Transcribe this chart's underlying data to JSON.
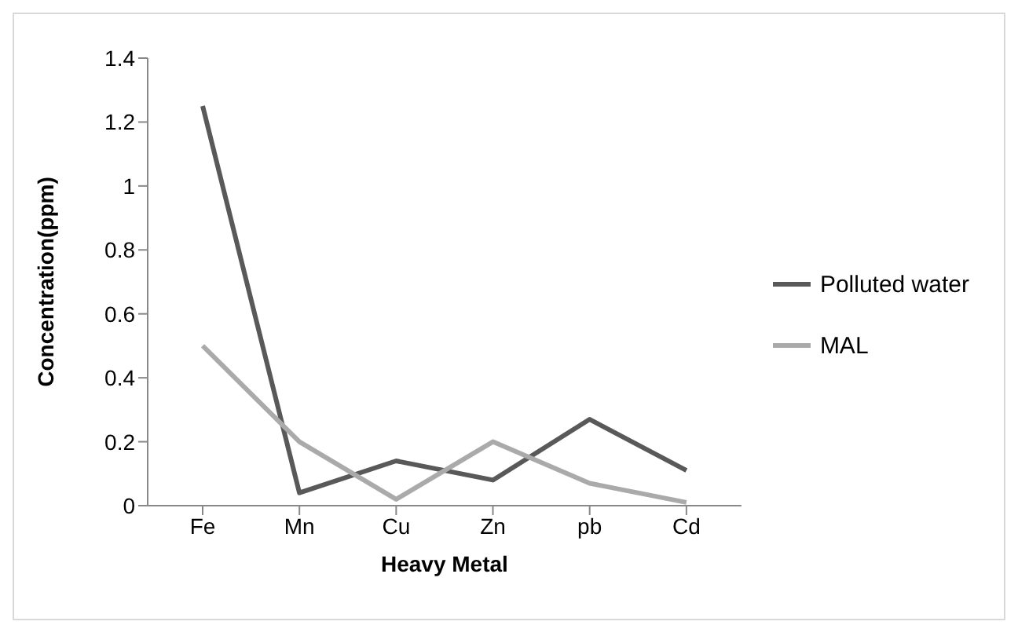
{
  "chart_data": {
    "type": "line",
    "xlabel": "Heavy Metal",
    "ylabel": "Concentration(ppm)",
    "categories": [
      "Fe",
      "Mn",
      "Cu",
      "Zn",
      "pb",
      "Cd"
    ],
    "series": [
      {
        "name": "Polluted water",
        "color": "#595959",
        "values": [
          1.25,
          0.04,
          0.14,
          0.08,
          0.27,
          0.11
        ]
      },
      {
        "name": "MAL",
        "color": "#aaaaaa",
        "values": [
          0.5,
          0.2,
          0.02,
          0.2,
          0.07,
          0.01
        ]
      }
    ],
    "ylim": [
      0,
      1.4
    ],
    "yticks": [
      0,
      0.2,
      0.4,
      0.6,
      0.8,
      1,
      1.2,
      1.4
    ],
    "grid": false,
    "legend": "right",
    "marker": "none",
    "line_style": "solid"
  }
}
